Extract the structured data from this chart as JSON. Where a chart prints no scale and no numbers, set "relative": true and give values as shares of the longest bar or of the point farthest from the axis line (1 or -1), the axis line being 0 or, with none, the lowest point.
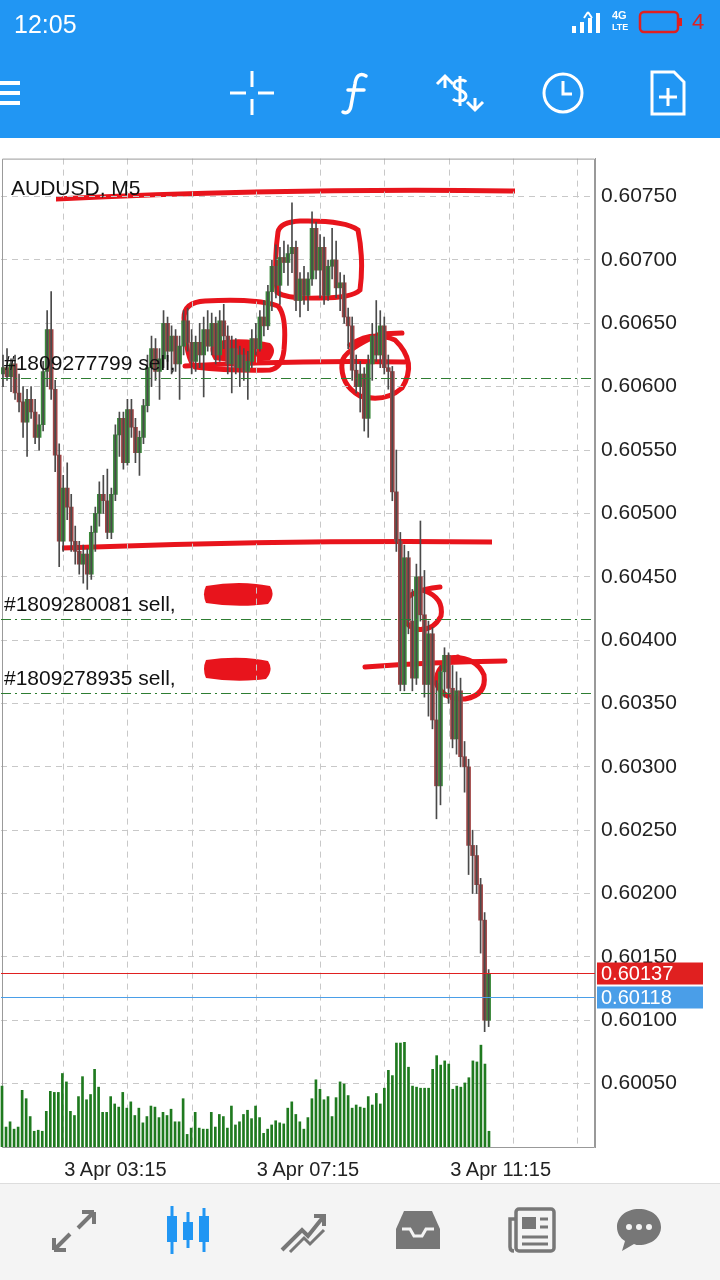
{
  "chart_data": [
    {
      "type": "other",
      "annotations": [
        "12:05",
        "4G",
        "LTE",
        "4"
      ]
    },
    {
      "type": "candlestick",
      "title": "AUDUSD, M5",
      "color": "#4a4a4a",
      "grid": true,
      "colors": [
        "#3c8a3c",
        "#a04545",
        "#3c8a3c",
        "#a04545",
        "#a04545",
        "#a04545",
        "#3c8a3c",
        "#a04545",
        "#a04545",
        "#3c8a3c",
        "#3c8a3c",
        "#3c8a3c",
        "#a04545",
        "#a04545",
        "#a04545",
        "#3c8a3c",
        "#a04545",
        "#a04545",
        "#a04545",
        "#a04545",
        "#3c8a3c",
        "#a04545",
        "#3c8a3c",
        "#3c8a3c",
        "#3c8a3c",
        "#a04545",
        "#a04545",
        "#3c8a3c",
        "#3c8a3c",
        "#3c8a3c",
        "#a04545",
        "#3c8a3c",
        "#a04545",
        "#a04545",
        "#3c8a3c",
        "#3c8a3c",
        "#3c8a3c",
        "#3c8a3c",
        "#a04545",
        "#3c8a3c",
        "#3c8a3c",
        "#a04545",
        "#3c8a3c",
        "#a04545",
        "#3c8a3c",
        "#3c8a3c",
        "#a04545",
        "#a04545",
        "#3c8a3c",
        "#a04545",
        "#3c8a3c",
        "#a04545",
        "#3c8a3c",
        "#a04545",
        "#3c8a3c",
        "#a04545",
        "#a04545",
        "#3c8a3c",
        "#a04545",
        "#3c8a3c",
        "#a04545",
        "#3c8a3c",
        "#3c8a3c",
        "#a04545",
        "#3c8a3c",
        "#a04545",
        "#3c8a3c",
        "#3c8a3c",
        "#a04545",
        "#3c8a3c",
        "#a04545",
        "#3c8a3c",
        "#3c8a3c",
        "#a04545",
        "#3c8a3c",
        "#a04545",
        "#3c8a3c",
        "#3c8a3c",
        "#a04545",
        "#3c8a3c",
        "#a04545",
        "#3c8a3c",
        "#3c8a3c",
        "#a04545",
        "#3c8a3c",
        "#a04545",
        "#a04545",
        "#a04545",
        "#a04545",
        "#3c8a3c",
        "#a04545",
        "#3c8a3c",
        "#3c8a3c",
        "#a04545",
        "#3c8a3c",
        "#a04545",
        "#a04545",
        "#a04545",
        "#a04545",
        "#a04545",
        "#3c8a3c",
        "#a04545",
        "#a04545",
        "#3c8a3c",
        "#a04545",
        "#a04545",
        "#3c8a3c",
        "#a04545",
        "#a04545",
        "#3c8a3c",
        "#3c8a3c",
        "#a04545",
        "#a04545",
        "#3c8a3c",
        "#a04545",
        "#a04545",
        "#a04545",
        "#a04545",
        "#a04545",
        "#a04545",
        "#a04545",
        "#3c8a3c",
        null,
        null,
        null,
        null,
        null,
        null,
        null,
        null,
        null,
        null,
        null,
        null,
        null,
        null,
        null,
        null,
        null,
        null,
        null,
        null,
        null,
        null,
        null,
        null,
        null,
        null
      ],
      "categories": [
        null,
        null,
        null,
        null,
        null,
        null,
        null,
        null,
        null,
        null,
        null,
        null,
        null,
        null,
        null,
        null,
        null,
        null,
        null,
        null,
        null,
        null,
        null,
        null,
        null,
        null,
        null,
        null,
        "3 Apr 03:15",
        null,
        null,
        null,
        null,
        null,
        null,
        null,
        null,
        null,
        null,
        null,
        null,
        null,
        null,
        null,
        null,
        null,
        null,
        null,
        null,
        null,
        null,
        null,
        null,
        null,
        null,
        null,
        null,
        null,
        null,
        null,
        null,
        null,
        null,
        null,
        null,
        null,
        null,
        null,
        null,
        null,
        null,
        null,
        null,
        null,
        null,
        null,
        "3 Apr 07:15",
        null,
        null,
        null,
        null,
        null,
        null,
        null,
        null,
        null,
        null,
        null,
        null,
        null,
        null,
        null,
        null,
        null,
        null,
        null,
        null,
        null,
        null,
        null,
        null,
        null,
        null,
        null,
        null,
        null,
        null,
        null,
        null,
        null,
        null,
        null,
        null,
        null,
        null,
        null,
        null,
        null,
        null,
        null,
        null,
        null,
        null,
        null,
        "3 Apr 11:15",
        null,
        null,
        null,
        null,
        null,
        null,
        null,
        null,
        null,
        null,
        null,
        null,
        null,
        null,
        null,
        null,
        null,
        null,
        null,
        null,
        null,
        null,
        null
      ],
      "ohlc": [
        [
          0.6061,
          0.60625,
          0.606,
          0.60615
        ],
        [
          0.60615,
          0.6063,
          0.60605,
          0.60608
        ],
        [
          0.60608,
          0.60622,
          0.60596,
          0.60618
        ],
        [
          0.60618,
          0.60625,
          0.6059,
          0.60595
        ],
        [
          0.60595,
          0.6061,
          0.6058,
          0.60588
        ],
        [
          0.60588,
          0.606,
          0.6056,
          0.60572
        ],
        [
          0.60572,
          0.60598,
          0.60545,
          0.6059
        ],
        [
          0.6059,
          0.606,
          0.60575,
          0.6058
        ],
        [
          0.6058,
          0.6059,
          0.60555,
          0.6056
        ],
        [
          0.6056,
          0.60578,
          0.6055,
          0.6057
        ],
        [
          0.6057,
          0.6062,
          0.60565,
          0.60612
        ],
        [
          0.60612,
          0.6066,
          0.606,
          0.60645
        ],
        [
          0.60645,
          0.60675,
          0.6059,
          0.60598
        ],
        [
          0.60598,
          0.60605,
          0.60533,
          0.60546
        ],
        [
          0.60546,
          0.60555,
          0.60458,
          0.60478
        ],
        [
          0.60478,
          0.6053,
          0.6047,
          0.6052
        ],
        [
          0.6052,
          0.6054,
          0.60495,
          0.60505
        ],
        [
          0.60505,
          0.60515,
          0.6047,
          0.60478
        ],
        [
          0.60478,
          0.6049,
          0.6046,
          0.6047
        ],
        [
          0.6047,
          0.60478,
          0.60452,
          0.6046
        ],
        [
          0.6046,
          0.60475,
          0.60445,
          0.60468
        ],
        [
          0.60468,
          0.60472,
          0.6044,
          0.60452
        ],
        [
          0.60452,
          0.6049,
          0.60448,
          0.60485
        ],
        [
          0.60485,
          0.60505,
          0.6047,
          0.605
        ],
        [
          0.605,
          0.60525,
          0.6049,
          0.60515
        ],
        [
          0.60515,
          0.6053,
          0.605,
          0.6051
        ],
        [
          0.6051,
          0.60535,
          0.6048,
          0.60485
        ],
        [
          0.60485,
          0.6052,
          0.6048,
          0.60515
        ],
        [
          0.60515,
          0.6057,
          0.6051,
          0.60562
        ],
        [
          0.60562,
          0.6058,
          0.60545,
          0.60575
        ],
        [
          0.60575,
          0.6058,
          0.60535,
          0.6054
        ],
        [
          0.6054,
          0.6059,
          0.60538,
          0.60582
        ],
        [
          0.60582,
          0.6059,
          0.6056,
          0.60568
        ],
        [
          0.60568,
          0.60575,
          0.6054,
          0.60548
        ],
        [
          0.60548,
          0.60565,
          0.6053,
          0.6056
        ],
        [
          0.6056,
          0.6059,
          0.60555,
          0.60585
        ],
        [
          0.60585,
          0.60625,
          0.6058,
          0.60615
        ],
        [
          0.60615,
          0.6064,
          0.606,
          0.6063
        ],
        [
          0.6063,
          0.60638,
          0.60605,
          0.60612
        ],
        [
          0.60612,
          0.6063,
          0.6059,
          0.60622
        ],
        [
          0.60622,
          0.6066,
          0.60615,
          0.6065
        ],
        [
          0.6065,
          0.60655,
          0.6062,
          0.60628
        ],
        [
          0.60628,
          0.60648,
          0.6061,
          0.6064
        ],
        [
          0.6064,
          0.60645,
          0.60612,
          0.60618
        ],
        [
          0.60618,
          0.6064,
          0.6059,
          0.60632
        ],
        [
          0.60632,
          0.6066,
          0.60625,
          0.60652
        ],
        [
          0.60652,
          0.60662,
          0.60628,
          0.60635
        ],
        [
          0.60635,
          0.60645,
          0.6061,
          0.6062
        ],
        [
          0.6062,
          0.6064,
          0.60612,
          0.60635
        ],
        [
          0.60635,
          0.6065,
          0.60615,
          0.60625
        ],
        [
          0.60625,
          0.60655,
          0.60592,
          0.60645
        ],
        [
          0.60645,
          0.6066,
          0.60628,
          0.60632
        ],
        [
          0.60632,
          0.60658,
          0.60625,
          0.6065
        ],
        [
          0.6065,
          0.60655,
          0.60618,
          0.60625
        ],
        [
          0.60625,
          0.6066,
          0.6062,
          0.60652
        ],
        [
          0.60652,
          0.60665,
          0.6063,
          0.6064
        ],
        [
          0.6064,
          0.60648,
          0.6061,
          0.60618
        ],
        [
          0.60618,
          0.6064,
          0.60595,
          0.6063
        ],
        [
          0.6063,
          0.60638,
          0.6061,
          0.60615
        ],
        [
          0.60615,
          0.60632,
          0.606,
          0.60625
        ],
        [
          0.60625,
          0.6063,
          0.60605,
          0.60612
        ],
        [
          0.60612,
          0.60628,
          0.6059,
          0.6062
        ],
        [
          0.6062,
          0.60645,
          0.60615,
          0.60638
        ],
        [
          0.60638,
          0.6065,
          0.60625,
          0.6063
        ],
        [
          0.6063,
          0.6066,
          0.60628,
          0.60655
        ],
        [
          0.60655,
          0.60668,
          0.6064,
          0.60648
        ],
        [
          0.60648,
          0.6068,
          0.60645,
          0.60675
        ],
        [
          0.60675,
          0.607,
          0.6066,
          0.60695
        ],
        [
          0.60695,
          0.60712,
          0.6067,
          0.6068
        ],
        [
          0.6068,
          0.6071,
          0.60665,
          0.60702
        ],
        [
          0.60702,
          0.60715,
          0.6069,
          0.60698
        ],
        [
          0.60698,
          0.60712,
          0.6068,
          0.60705
        ],
        [
          0.60705,
          0.60745,
          0.6069,
          0.6071
        ],
        [
          0.6071,
          0.60715,
          0.6066,
          0.60668
        ],
        [
          0.60668,
          0.6069,
          0.60655,
          0.60685
        ],
        [
          0.60685,
          0.60695,
          0.60665,
          0.60672
        ],
        [
          0.60672,
          0.6069,
          0.6066,
          0.60685
        ],
        [
          0.60685,
          0.60738,
          0.6068,
          0.60725
        ],
        [
          0.60725,
          0.6073,
          0.60685,
          0.60692
        ],
        [
          0.60692,
          0.6072,
          0.6067,
          0.6071
        ],
        [
          0.6071,
          0.60718,
          0.60665,
          0.60672
        ],
        [
          0.60672,
          0.607,
          0.60668,
          0.60695
        ],
        [
          0.60695,
          0.60725,
          0.60685,
          0.607
        ],
        [
          0.607,
          0.60715,
          0.6067,
          0.60678
        ],
        [
          0.60678,
          0.6069,
          0.6066,
          0.60682
        ],
        [
          0.60682,
          0.60688,
          0.6065,
          0.60655
        ],
        [
          0.60655,
          0.60662,
          0.6063,
          0.60648
        ],
        [
          0.60648,
          0.60655,
          0.60605,
          0.60613
        ],
        [
          0.60613,
          0.60625,
          0.60595,
          0.606
        ],
        [
          0.606,
          0.6062,
          0.6058,
          0.6061
        ],
        [
          0.6061,
          0.60615,
          0.60565,
          0.60575
        ],
        [
          0.60575,
          0.60625,
          0.6056,
          0.60618
        ],
        [
          0.60618,
          0.6065,
          0.60605,
          0.6064
        ],
        [
          0.6064,
          0.60668,
          0.6062,
          0.60625
        ],
        [
          0.60625,
          0.6066,
          0.60615,
          0.60648
        ],
        [
          0.60648,
          0.60655,
          0.6061,
          0.60615
        ],
        [
          0.60615,
          0.60625,
          0.60598,
          0.60612
        ],
        [
          0.60612,
          0.60616,
          0.6051,
          0.60517
        ],
        [
          0.60517,
          0.6055,
          0.6047,
          0.60478
        ],
        [
          0.60478,
          0.60485,
          0.6036,
          0.60365
        ],
        [
          0.60365,
          0.60475,
          0.6036,
          0.60465
        ],
        [
          0.60465,
          0.6047,
          0.60405,
          0.60415
        ],
        [
          0.60415,
          0.6044,
          0.6036,
          0.6037
        ],
        [
          0.6037,
          0.6046,
          0.60365,
          0.6045
        ],
        [
          0.6045,
          0.60494,
          0.60415,
          0.6042
        ],
        [
          0.6042,
          0.60455,
          0.60355,
          0.60365
        ],
        [
          0.60365,
          0.60415,
          0.6034,
          0.60405
        ],
        [
          0.60405,
          0.6041,
          0.6033,
          0.60337
        ],
        [
          0.60337,
          0.60368,
          0.60259,
          0.60285
        ],
        [
          0.60285,
          0.6038,
          0.6027,
          0.60375
        ],
        [
          0.60375,
          0.60394,
          0.60355,
          0.60388
        ],
        [
          0.60388,
          0.6039,
          0.6035,
          0.60362
        ],
        [
          0.60362,
          0.6038,
          0.60315,
          0.60322
        ],
        [
          0.60322,
          0.60375,
          0.6031,
          0.6036
        ],
        [
          0.6036,
          0.6037,
          0.603,
          0.60308
        ],
        [
          0.60308,
          0.6032,
          0.6028,
          0.603
        ],
        [
          0.603,
          0.60306,
          0.60215,
          0.60238
        ],
        [
          0.60238,
          0.6025,
          0.602,
          0.6023
        ],
        [
          0.6023,
          0.60238,
          0.602,
          0.60207
        ],
        [
          0.60207,
          0.60212,
          0.60153,
          0.60179
        ],
        [
          0.60179,
          0.60185,
          0.60091,
          0.601
        ],
        [
          0.601,
          0.6014,
          0.60095,
          0.60137
        ],
        null,
        null,
        null,
        null,
        null,
        null,
        null,
        null,
        null,
        null,
        null,
        null,
        null,
        null,
        null,
        null,
        null,
        null,
        null,
        null,
        null,
        null,
        null,
        null,
        null,
        null
      ],
      "ylim": [
        0.6,
        0.6078
      ],
      "yticks": [
        {
          "value": 0.6005,
          "label": "0.60050"
        },
        {
          "value": 0.601,
          "label": "0.60100"
        },
        {
          "value": 0.6015,
          "label": "0.60150"
        },
        {
          "value": 0.602,
          "label": "0.60200"
        },
        {
          "value": 0.6025,
          "label": "0.60250"
        },
        {
          "value": 0.603,
          "label": "0.60300"
        },
        {
          "value": 0.6035,
          "label": "0.60350"
        },
        {
          "value": 0.604,
          "label": "0.60400"
        },
        {
          "value": 0.6045,
          "label": "0.60450"
        },
        {
          "value": 0.605,
          "label": "0.60500"
        },
        {
          "value": 0.6055,
          "label": "0.60550"
        },
        {
          "value": 0.606,
          "label": "0.60600"
        },
        {
          "value": 0.6065,
          "label": "0.60650"
        },
        {
          "value": 0.607,
          "label": "0.60700"
        },
        {
          "value": 0.6075,
          "label": "0.60750"
        }
      ],
      "ref_lines": [
        {
          "axis": "y",
          "value": 0.60607,
          "label": "#1809277799 sell,",
          "color": "#2e7d32",
          "line_style": "dashed"
        },
        {
          "axis": "y",
          "value": 0.60417,
          "label": "#1809280081 sell,",
          "color": "#2e7d32",
          "line_style": "dashed"
        },
        {
          "axis": "y",
          "value": 0.60358,
          "label": "#1809278935 sell,",
          "color": "#2e7d32",
          "line_style": "dashed"
        },
        {
          "axis": "y",
          "value": 0.60137,
          "label": "0.60137",
          "color": "#e02020",
          "line_style": "solid"
        },
        {
          "axis": "y",
          "value": 0.60118,
          "label": "0.60118",
          "color": "#4a9ee8",
          "line_style": "solid"
        }
      ]
    },
    {
      "type": "bar",
      "relative": true,
      "color": "#1f7a1f",
      "categories": [
        null,
        null,
        null,
        null,
        null,
        null,
        null,
        null,
        null,
        null,
        null,
        null,
        null,
        null,
        null,
        null,
        null,
        null,
        null,
        null,
        null,
        null,
        null,
        null,
        null,
        null,
        null,
        null,
        null,
        null,
        null,
        null,
        null,
        null,
        null,
        null,
        null,
        null,
        null,
        null,
        null,
        null,
        null,
        null,
        null,
        null,
        null,
        null,
        null,
        null,
        null,
        null,
        null,
        null,
        null,
        null,
        null,
        null,
        null,
        null,
        null,
        null,
        null,
        null,
        null,
        null,
        null,
        null,
        null,
        null,
        null,
        null,
        null,
        null,
        null,
        null,
        null,
        null,
        null,
        null,
        null,
        null,
        null,
        null,
        null,
        null,
        null,
        null,
        null,
        null,
        null,
        null,
        null,
        null,
        null,
        null,
        null,
        null,
        null,
        null,
        null,
        null,
        null,
        null,
        null,
        null,
        null,
        null,
        null,
        null,
        null,
        null,
        null,
        null,
        null,
        null,
        null,
        null,
        null,
        null,
        null,
        null
      ],
      "values": [
        0.58,
        0.19,
        0.24,
        0.17,
        0.19,
        0.54,
        0.46,
        0.29,
        0.15,
        0.16,
        0.15,
        0.34,
        0.53,
        0.52,
        0.52,
        0.7,
        0.62,
        0.34,
        0.3,
        0.48,
        0.67,
        0.45,
        0.5,
        0.74,
        0.57,
        0.33,
        0.33,
        0.48,
        0.41,
        0.38,
        0.52,
        0.37,
        0.43,
        0.3,
        0.37,
        0.23,
        0.29,
        0.39,
        0.38,
        0.28,
        0.33,
        0.3,
        0.36,
        0.24,
        0.24,
        0.46,
        0.12,
        0.18,
        0.33,
        0.18,
        0.17,
        0.17,
        0.33,
        0.19,
        0.31,
        0.29,
        0.18,
        0.39,
        0.21,
        0.24,
        0.31,
        0.35,
        0.27,
        0.39,
        0.28,
        0.13,
        0.17,
        0.21,
        0.25,
        0.23,
        0.22,
        0.37,
        0.43,
        0.31,
        0.24,
        0.17,
        0.28,
        0.46,
        0.64,
        0.55,
        0.45,
        0.48,
        0.29,
        0.47,
        0.62,
        0.6,
        0.49,
        0.37,
        0.4,
        0.38,
        0.37,
        0.48,
        0.4,
        0.51,
        0.41,
        0.56,
        0.73,
        0.68,
        0.99,
        0.99,
        1,
        0.76,
        0.58,
        0.57,
        0.56,
        0.56,
        0.56,
        0.74,
        0.87,
        0.78,
        0.82,
        0.79,
        0.55,
        0.58,
        0.57,
        0.61,
        0.66,
        0.82,
        0.81,
        0.97,
        0.79,
        0.15
      ]
    }
  ]
}
